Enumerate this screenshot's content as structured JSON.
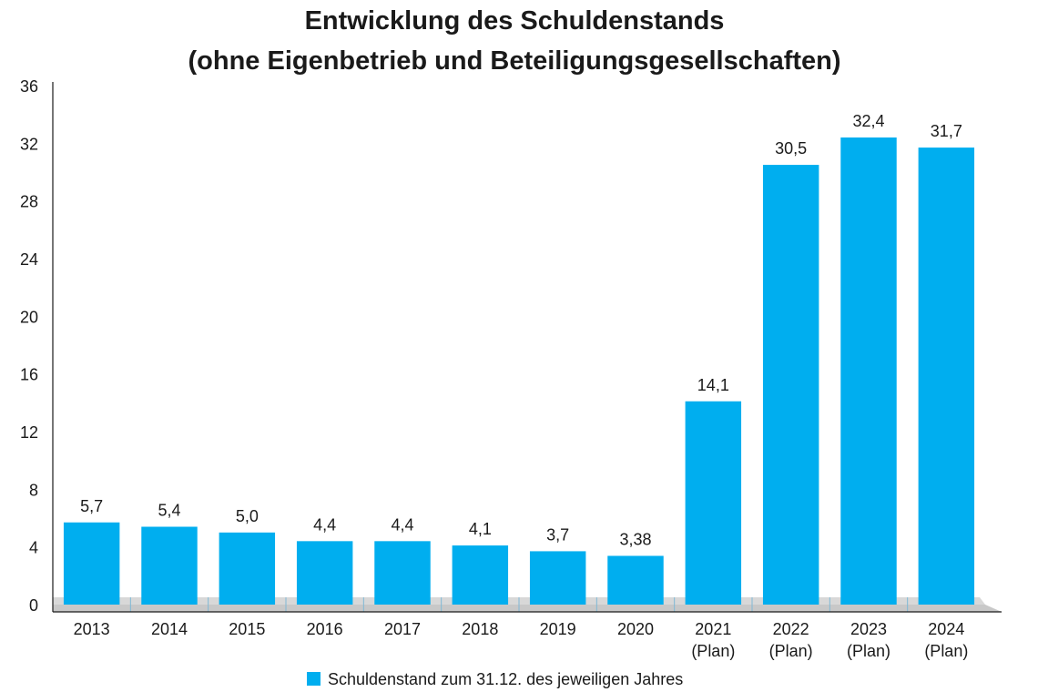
{
  "chart_data": {
    "type": "bar",
    "title": "Entwicklung des Schuldenstands",
    "subtitle": "(ohne Eigenbetrieb und Beteiligungsgesellschaften)",
    "xlabel": "",
    "ylabel": "",
    "ylim": [
      0,
      36
    ],
    "yticks": [
      "0",
      "4",
      "8",
      "12",
      "16",
      "20",
      "24",
      "28",
      "32",
      "36"
    ],
    "categories": [
      {
        "year": "2013",
        "note": ""
      },
      {
        "year": "2014",
        "note": ""
      },
      {
        "year": "2015",
        "note": ""
      },
      {
        "year": "2016",
        "note": ""
      },
      {
        "year": "2017",
        "note": ""
      },
      {
        "year": "2018",
        "note": ""
      },
      {
        "year": "2019",
        "note": ""
      },
      {
        "year": "2020",
        "note": ""
      },
      {
        "year": "2021",
        "note": "(Plan)"
      },
      {
        "year": "2022",
        "note": "(Plan)"
      },
      {
        "year": "2023",
        "note": "(Plan)"
      },
      {
        "year": "2024",
        "note": "(Plan)"
      }
    ],
    "values": [
      5.7,
      5.4,
      5.0,
      4.4,
      4.4,
      4.1,
      3.7,
      3.38,
      14.1,
      30.5,
      32.4,
      31.7
    ],
    "value_labels": [
      "5,7",
      "5,4",
      "5,0",
      "4,4",
      "4,4",
      "4,1",
      "3,7",
      "3,38",
      "14,1",
      "30,5",
      "32,4",
      "31,7"
    ],
    "series_name": "Schuldenstand zum 31.12. des jeweiligen Jahres",
    "grid": false,
    "legend_position": "bottom-center",
    "colors": {
      "bar": "#00aeef",
      "floor": "#c8c8c8",
      "axis": "#1a1a1a",
      "text": "#1a1a1a"
    }
  }
}
